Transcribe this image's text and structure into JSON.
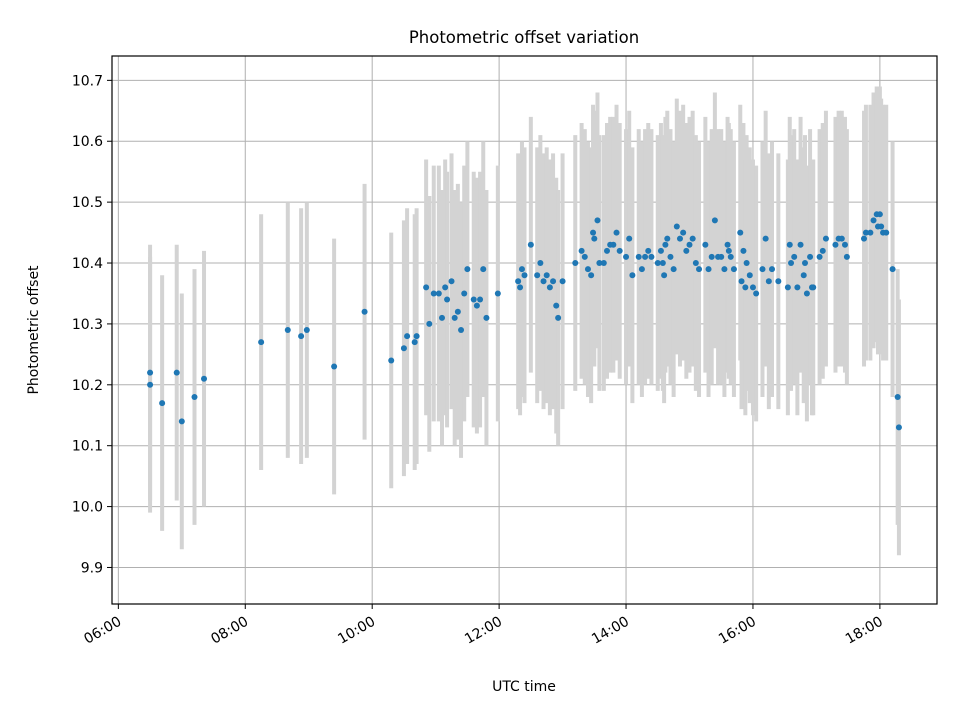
{
  "chart_data": {
    "type": "scatter",
    "title": "Photometric offset variation",
    "xlabel": "UTC time",
    "ylabel": "Photometric offset",
    "x_unit": "hours UTC",
    "xlim": [
      5.9,
      18.9
    ],
    "ylim": [
      9.84,
      10.74
    ],
    "xticks": [
      6,
      8,
      10,
      12,
      14,
      16,
      18
    ],
    "xtick_labels": [
      "06:00",
      "08:00",
      "10:00",
      "12:00",
      "14:00",
      "16:00",
      "18:00"
    ],
    "yticks": [
      9.9,
      10.0,
      10.1,
      10.2,
      10.3,
      10.4,
      10.5,
      10.6,
      10.7
    ],
    "ytick_labels": [
      "9.9",
      "10.0",
      "10.1",
      "10.2",
      "10.3",
      "10.4",
      "10.5",
      "10.6",
      "10.7"
    ],
    "grid": true,
    "marker_color": "#1f77b4",
    "errorbar_color": "#d3d3d3",
    "series": [
      {
        "error_half_width": 0.21,
        "points": [
          [
            6.5,
            10.22
          ],
          [
            6.5,
            10.2
          ],
          [
            6.69,
            10.17
          ],
          [
            6.92,
            10.22
          ],
          [
            7.0,
            10.14
          ],
          [
            7.2,
            10.18
          ],
          [
            7.35,
            10.21
          ],
          [
            8.25,
            10.27
          ],
          [
            8.67,
            10.29
          ],
          [
            8.88,
            10.28
          ],
          [
            8.97,
            10.29
          ],
          [
            9.4,
            10.23
          ],
          [
            9.88,
            10.32
          ],
          [
            10.3,
            10.24
          ],
          [
            10.5,
            10.26
          ],
          [
            10.55,
            10.28
          ],
          [
            10.67,
            10.27
          ],
          [
            10.7,
            10.28
          ],
          [
            10.85,
            10.36
          ],
          [
            10.9,
            10.3
          ],
          [
            10.97,
            10.35
          ],
          [
            11.05,
            10.35
          ],
          [
            11.1,
            10.31
          ],
          [
            11.15,
            10.36
          ],
          [
            11.18,
            10.34
          ],
          [
            11.25,
            10.37
          ],
          [
            11.3,
            10.31
          ],
          [
            11.35,
            10.32
          ],
          [
            11.4,
            10.29
          ],
          [
            11.45,
            10.35
          ],
          [
            11.5,
            10.39
          ],
          [
            11.6,
            10.34
          ],
          [
            11.65,
            10.33
          ],
          [
            11.7,
            10.34
          ],
          [
            11.75,
            10.39
          ],
          [
            11.8,
            10.31
          ],
          [
            11.98,
            10.35
          ],
          [
            12.3,
            10.37
          ],
          [
            12.33,
            10.36
          ],
          [
            12.36,
            10.39
          ],
          [
            12.4,
            10.38
          ],
          [
            12.5,
            10.43
          ],
          [
            12.6,
            10.38
          ],
          [
            12.65,
            10.4
          ],
          [
            12.7,
            10.37
          ],
          [
            12.75,
            10.38
          ],
          [
            12.8,
            10.36
          ],
          [
            12.85,
            10.37
          ],
          [
            12.9,
            10.33
          ],
          [
            12.93,
            10.31
          ],
          [
            13.0,
            10.37
          ],
          [
            13.2,
            10.4
          ],
          [
            13.3,
            10.42
          ],
          [
            13.35,
            10.41
          ],
          [
            13.4,
            10.39
          ],
          [
            13.45,
            10.38
          ],
          [
            13.48,
            10.45
          ],
          [
            13.5,
            10.44
          ],
          [
            13.55,
            10.47
          ],
          [
            13.58,
            10.4
          ],
          [
            13.65,
            10.4
          ],
          [
            13.7,
            10.42
          ],
          [
            13.75,
            10.43
          ],
          [
            13.8,
            10.43
          ],
          [
            13.85,
            10.45
          ],
          [
            13.9,
            10.42
          ],
          [
            14.0,
            10.41
          ],
          [
            14.05,
            10.44
          ],
          [
            14.1,
            10.38
          ],
          [
            14.2,
            10.41
          ],
          [
            14.25,
            10.39
          ],
          [
            14.3,
            10.41
          ],
          [
            14.35,
            10.42
          ],
          [
            14.4,
            10.41
          ],
          [
            14.5,
            10.4
          ],
          [
            14.55,
            10.42
          ],
          [
            14.58,
            10.4
          ],
          [
            14.6,
            10.38
          ],
          [
            14.62,
            10.43
          ],
          [
            14.65,
            10.44
          ],
          [
            14.7,
            10.41
          ],
          [
            14.75,
            10.39
          ],
          [
            14.8,
            10.46
          ],
          [
            14.85,
            10.44
          ],
          [
            14.9,
            10.45
          ],
          [
            14.95,
            10.42
          ],
          [
            15.0,
            10.43
          ],
          [
            15.05,
            10.44
          ],
          [
            15.1,
            10.4
          ],
          [
            15.15,
            10.39
          ],
          [
            15.25,
            10.43
          ],
          [
            15.3,
            10.39
          ],
          [
            15.35,
            10.41
          ],
          [
            15.4,
            10.47
          ],
          [
            15.45,
            10.41
          ],
          [
            15.5,
            10.41
          ],
          [
            15.55,
            10.39
          ],
          [
            15.6,
            10.43
          ],
          [
            15.62,
            10.42
          ],
          [
            15.65,
            10.41
          ],
          [
            15.7,
            10.39
          ],
          [
            15.8,
            10.45
          ],
          [
            15.82,
            10.37
          ],
          [
            15.85,
            10.42
          ],
          [
            15.88,
            10.36
          ],
          [
            15.9,
            10.4
          ],
          [
            15.95,
            10.38
          ],
          [
            16.0,
            10.36
          ],
          [
            16.05,
            10.35
          ],
          [
            16.15,
            10.39
          ],
          [
            16.2,
            10.44
          ],
          [
            16.25,
            10.37
          ],
          [
            16.3,
            10.39
          ],
          [
            16.4,
            10.37
          ],
          [
            16.55,
            10.36
          ],
          [
            16.58,
            10.43
          ],
          [
            16.6,
            10.4
          ],
          [
            16.65,
            10.41
          ],
          [
            16.7,
            10.36
          ],
          [
            16.75,
            10.43
          ],
          [
            16.8,
            10.38
          ],
          [
            16.82,
            10.4
          ],
          [
            16.85,
            10.35
          ],
          [
            16.9,
            10.41
          ],
          [
            16.93,
            10.36
          ],
          [
            16.95,
            10.36
          ],
          [
            17.05,
            10.41
          ],
          [
            17.1,
            10.42
          ],
          [
            17.15,
            10.44
          ],
          [
            17.3,
            10.43
          ],
          [
            17.35,
            10.44
          ],
          [
            17.4,
            10.44
          ],
          [
            17.45,
            10.43
          ],
          [
            17.48,
            10.41
          ],
          [
            17.75,
            10.44
          ],
          [
            17.78,
            10.45
          ],
          [
            17.85,
            10.45
          ],
          [
            17.9,
            10.47
          ],
          [
            17.95,
            10.48
          ],
          [
            17.97,
            10.46
          ],
          [
            18.0,
            10.48
          ],
          [
            18.02,
            10.46
          ],
          [
            18.05,
            10.45
          ],
          [
            18.1,
            10.45
          ],
          [
            18.2,
            10.39
          ],
          [
            18.28,
            10.18
          ],
          [
            18.3,
            10.13
          ]
        ]
      }
    ]
  }
}
